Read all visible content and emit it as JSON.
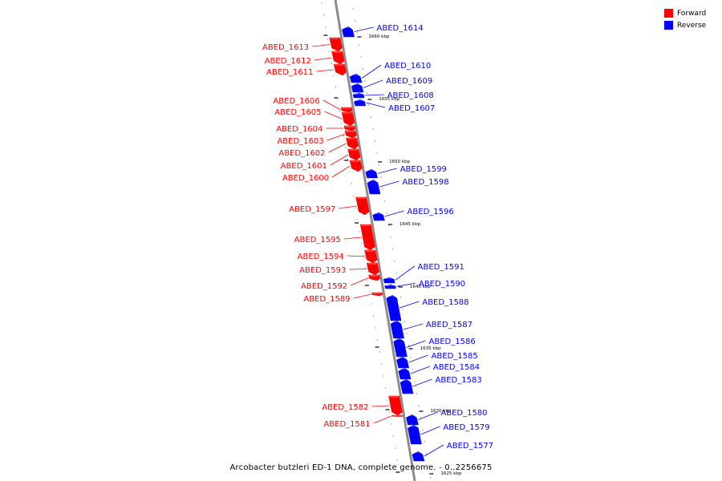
{
  "legend": {
    "forward_label": "Forward",
    "reverse_label": "Reverse",
    "forward_color": "#ff0000",
    "reverse_color": "#0000ff"
  },
  "caption": "Arcobacter butzleri ED-1 DNA, complete genome. - 0..2256675",
  "backbone_color": "#8c8c8c",
  "position_labels": [
    "1660 kbp",
    "1655 kbp",
    "1650 kbp",
    "1645 kbp",
    "1640 kbp",
    "1635 kbp",
    "1630 kbp",
    "1625 kbp"
  ],
  "genes": [
    {
      "label": "ABED_1614",
      "strand": "reverse"
    },
    {
      "label": "ABED_1613",
      "strand": "forward"
    },
    {
      "label": "ABED_1612",
      "strand": "forward"
    },
    {
      "label": "ABED_1611",
      "strand": "forward"
    },
    {
      "label": "ABED_1610",
      "strand": "reverse"
    },
    {
      "label": "ABED_1609",
      "strand": "reverse"
    },
    {
      "label": "ABED_1608",
      "strand": "reverse"
    },
    {
      "label": "ABED_1607",
      "strand": "reverse"
    },
    {
      "label": "ABED_1606",
      "strand": "forward"
    },
    {
      "label": "ABED_1605",
      "strand": "forward"
    },
    {
      "label": "ABED_1604",
      "strand": "forward"
    },
    {
      "label": "ABED_1603",
      "strand": "forward"
    },
    {
      "label": "ABED_1602",
      "strand": "forward"
    },
    {
      "label": "ABED_1601",
      "strand": "forward"
    },
    {
      "label": "ABED_1600",
      "strand": "forward"
    },
    {
      "label": "ABED_1599",
      "strand": "reverse"
    },
    {
      "label": "ABED_1598",
      "strand": "reverse"
    },
    {
      "label": "ABED_1597",
      "strand": "forward"
    },
    {
      "label": "ABED_1596",
      "strand": "reverse"
    },
    {
      "label": "ABED_1595",
      "strand": "forward"
    },
    {
      "label": "ABED_1594",
      "strand": "forward"
    },
    {
      "label": "ABED_1593",
      "strand": "forward"
    },
    {
      "label": "ABED_1592",
      "strand": "forward"
    },
    {
      "label": "ABED_1591",
      "strand": "reverse"
    },
    {
      "label": "ABED_1590",
      "strand": "reverse"
    },
    {
      "label": "ABED_1589",
      "strand": "forward"
    },
    {
      "label": "ABED_1588",
      "strand": "reverse"
    },
    {
      "label": "ABED_1587",
      "strand": "reverse"
    },
    {
      "label": "ABED_1586",
      "strand": "reverse"
    },
    {
      "label": "ABED_1585",
      "strand": "reverse"
    },
    {
      "label": "ABED_1584",
      "strand": "reverse"
    },
    {
      "label": "ABED_1583",
      "strand": "reverse"
    },
    {
      "label": "ABED_1582",
      "strand": "forward"
    },
    {
      "label": "ABED_1581",
      "strand": "forward"
    },
    {
      "label": "ABED_1580",
      "strand": "reverse"
    },
    {
      "label": "ABED_1579",
      "strand": "reverse"
    },
    {
      "label": "ABED_1577",
      "strand": "reverse"
    }
  ]
}
